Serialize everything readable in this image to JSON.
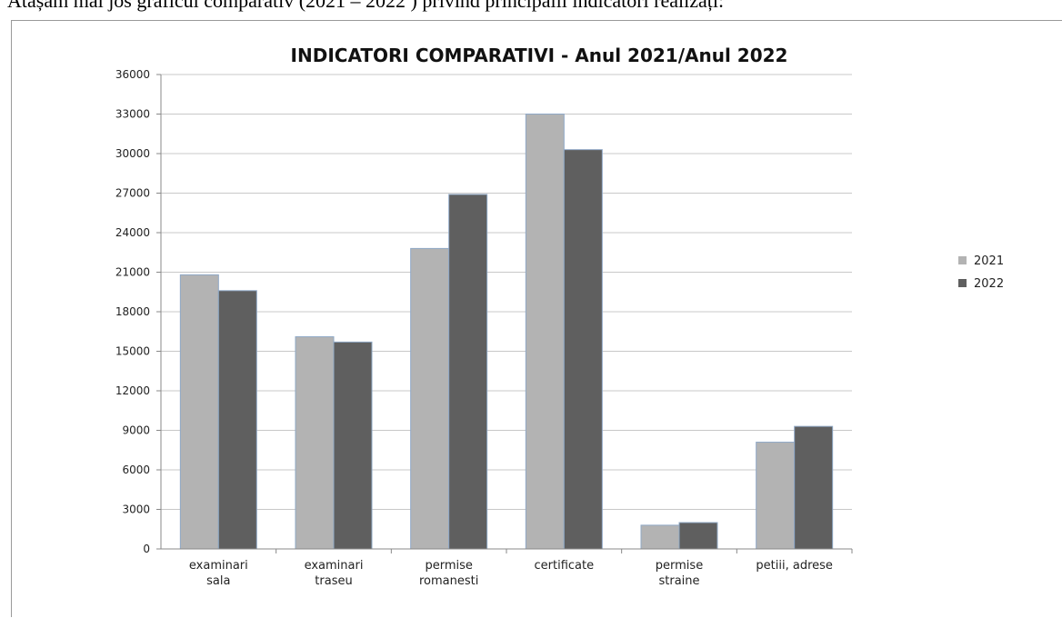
{
  "document": {
    "intro_text": "Atașăm mai jos graficul comparativ (2021 – 2022 ) privind principalii indicatori realizați:"
  },
  "chart_data": {
    "type": "bar",
    "title": "INDICATORI COMPARATIVI  - Anul 2021/Anul 2022",
    "xlabel": "",
    "ylabel": "",
    "ylim": [
      0,
      36000
    ],
    "yticks": [
      0,
      3000,
      6000,
      9000,
      12000,
      15000,
      18000,
      21000,
      24000,
      27000,
      30000,
      33000,
      36000
    ],
    "grid": true,
    "legend_position": "right",
    "categories": [
      [
        "examinari",
        "sala"
      ],
      [
        "examinari",
        "traseu"
      ],
      [
        "permise",
        "romanesti"
      ],
      [
        "certificate"
      ],
      [
        "permise",
        "straine"
      ],
      [
        "petiii, adrese"
      ]
    ],
    "series": [
      {
        "name": "2021",
        "color": "#b3b3b3",
        "values": [
          20800,
          16100,
          22800,
          33000,
          1800,
          8100
        ]
      },
      {
        "name": "2022",
        "color": "#5f5f5f",
        "values": [
          19600,
          15700,
          26900,
          30300,
          2000,
          9300
        ]
      }
    ]
  }
}
